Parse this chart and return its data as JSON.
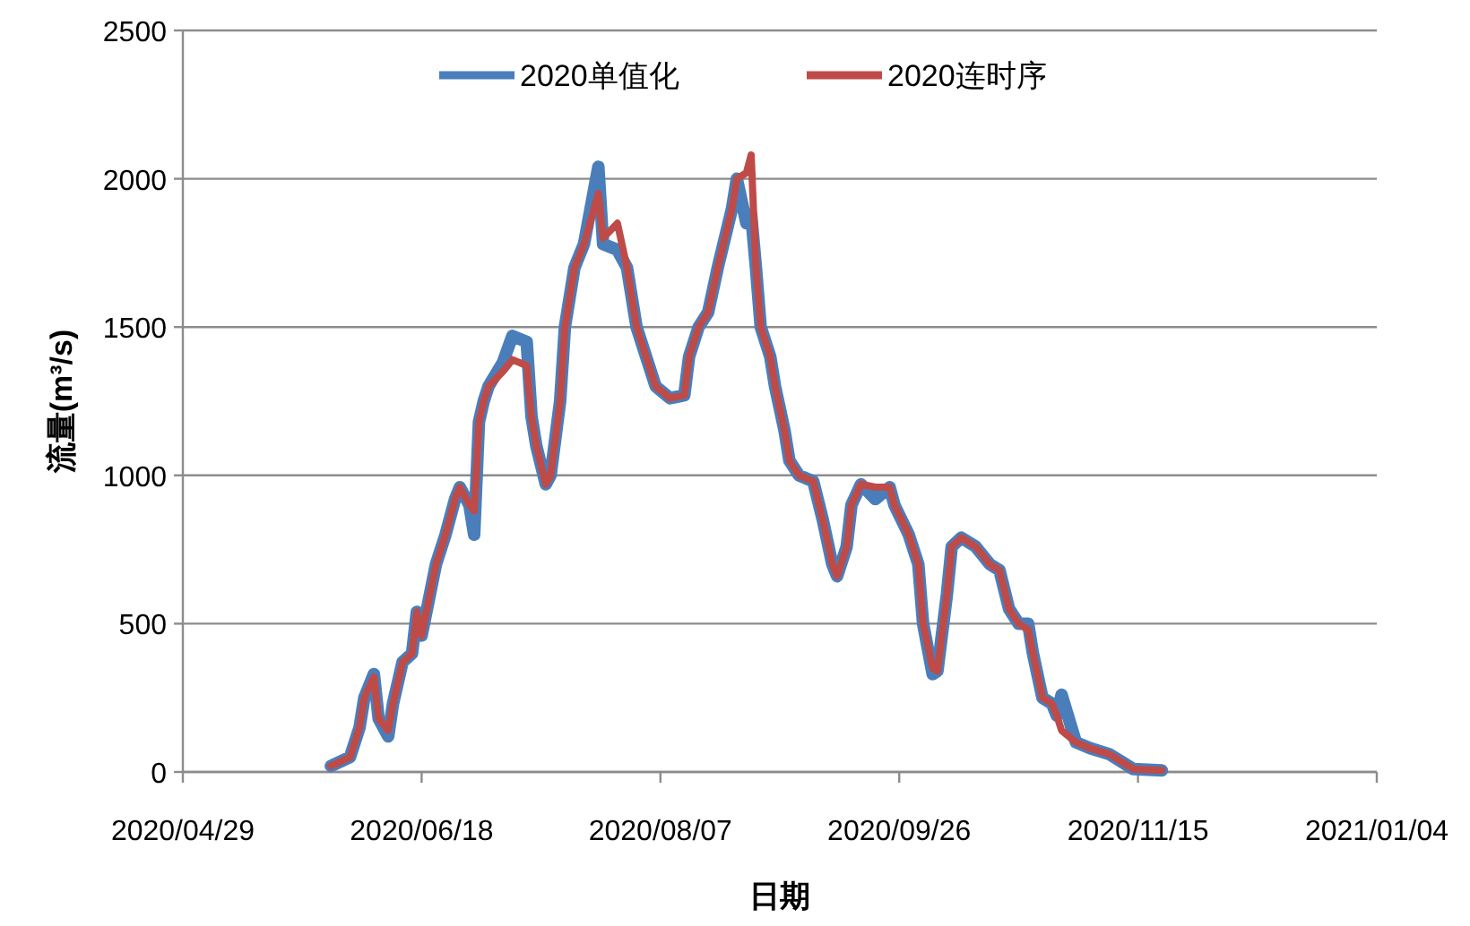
{
  "chart_data": {
    "type": "line",
    "xlabel": "日期",
    "ylabel": "流量(m³/s)",
    "x": [
      "2020-05-30",
      "2020-06-03",
      "2020-06-05",
      "2020-06-06",
      "2020-06-08",
      "2020-06-09",
      "2020-06-11",
      "2020-06-12",
      "2020-06-14",
      "2020-06-16",
      "2020-06-17",
      "2020-06-18",
      "2020-06-20",
      "2020-06-21",
      "2020-06-23",
      "2020-06-25",
      "2020-06-26",
      "2020-06-28",
      "2020-06-29",
      "2020-06-30",
      "2020-07-01",
      "2020-07-02",
      "2020-07-05",
      "2020-07-07",
      "2020-07-10",
      "2020-07-11",
      "2020-07-12",
      "2020-07-14",
      "2020-07-15",
      "2020-07-17",
      "2020-07-18",
      "2020-07-20",
      "2020-07-22",
      "2020-07-25",
      "2020-07-26",
      "2020-07-29",
      "2020-07-31",
      "2020-08-02",
      "2020-08-04",
      "2020-08-06",
      "2020-08-09",
      "2020-08-12",
      "2020-08-13",
      "2020-08-15",
      "2020-08-17",
      "2020-08-19",
      "2020-08-22",
      "2020-08-23",
      "2020-08-25",
      "2020-08-26",
      "2020-08-27",
      "2020-08-28",
      "2020-08-30",
      "2020-08-31",
      "2020-09-02",
      "2020-09-03",
      "2020-09-05",
      "2020-09-08",
      "2020-09-10",
      "2020-09-12",
      "2020-09-13",
      "2020-09-15",
      "2020-09-16",
      "2020-09-18",
      "2020-09-21",
      "2020-09-24",
      "2020-09-25",
      "2020-09-28",
      "2020-09-30",
      "2020-10-01",
      "2020-10-03",
      "2020-10-04",
      "2020-10-06",
      "2020-10-07",
      "2020-10-09",
      "2020-10-12",
      "2020-10-15",
      "2020-10-17",
      "2020-10-19",
      "2020-10-21",
      "2020-10-23",
      "2020-10-24",
      "2020-10-26",
      "2020-10-28",
      "2020-10-29",
      "2020-10-30",
      "2020-11-02",
      "2020-11-05",
      "2020-11-09",
      "2020-11-12",
      "2020-11-14",
      "2020-11-20"
    ],
    "series": [
      {
        "name": "2020单值化",
        "color": "#4a7ebb",
        "values": [
          20,
          50,
          150,
          250,
          330,
          180,
          120,
          230,
          370,
          400,
          540,
          460,
          620,
          700,
          800,
          920,
          960,
          900,
          800,
          1180,
          1250,
          1300,
          1380,
          1470,
          1450,
          1200,
          1100,
          970,
          1000,
          1250,
          1500,
          1700,
          1780,
          2040,
          1780,
          1760,
          1700,
          1500,
          1400,
          1300,
          1260,
          1270,
          1400,
          1500,
          1550,
          1700,
          1900,
          2000,
          1850,
          1880,
          1700,
          1500,
          1400,
          1300,
          1150,
          1050,
          1000,
          980,
          850,
          700,
          660,
          760,
          900,
          970,
          920,
          960,
          900,
          800,
          700,
          500,
          330,
          340,
          600,
          760,
          790,
          760,
          700,
          680,
          550,
          500,
          500,
          400,
          250,
          230,
          190,
          260,
          100,
          80,
          60,
          30,
          10,
          5
        ]
      },
      {
        "name": "2020连时序",
        "color": "#be4b48",
        "values": [
          20,
          50,
          150,
          250,
          320,
          180,
          140,
          230,
          370,
          400,
          540,
          460,
          620,
          700,
          800,
          920,
          960,
          900,
          880,
          1180,
          1250,
          1300,
          1350,
          1390,
          1370,
          1200,
          1100,
          970,
          1000,
          1250,
          1500,
          1700,
          1780,
          1950,
          1800,
          1850,
          1700,
          1500,
          1400,
          1300,
          1260,
          1270,
          1400,
          1500,
          1550,
          1700,
          1900,
          2000,
          2020,
          2080,
          1700,
          1500,
          1400,
          1300,
          1150,
          1050,
          1000,
          980,
          850,
          700,
          660,
          760,
          900,
          970,
          960,
          960,
          900,
          800,
          700,
          500,
          350,
          340,
          600,
          760,
          790,
          760,
          700,
          680,
          550,
          500,
          480,
          400,
          250,
          230,
          190,
          140,
          100,
          80,
          60,
          30,
          10,
          5
        ]
      }
    ],
    "xlim": [
      "2020-04-29",
      "2021-01-04"
    ],
    "xticks": [
      {
        "value": "2020-04-29",
        "label": "2020/04/29"
      },
      {
        "value": "2020-06-18",
        "label": "2020/06/18"
      },
      {
        "value": "2020-08-07",
        "label": "2020/08/07"
      },
      {
        "value": "2020-09-26",
        "label": "2020/09/26"
      },
      {
        "value": "2020-11-15",
        "label": "2020/11/15"
      },
      {
        "value": "2021-01-04",
        "label": "2021/01/04"
      }
    ],
    "ylim": [
      0,
      2500
    ],
    "yticks": [
      0,
      500,
      1000,
      1500,
      2000,
      2500
    ],
    "grid": "y",
    "legend": "top",
    "line_style": "solid",
    "marker": "none"
  }
}
